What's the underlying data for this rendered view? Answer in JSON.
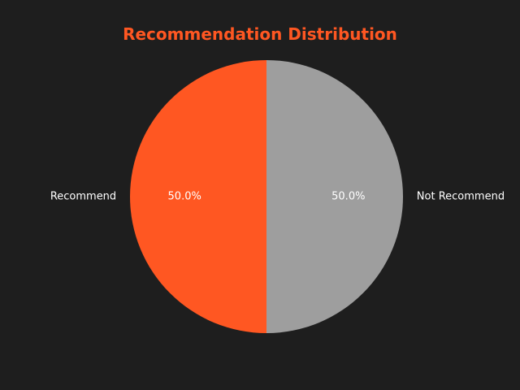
{
  "chart_data": {
    "type": "pie",
    "title": "Recommendation Distribution",
    "categories": [
      "Recommend",
      "Not Recommend"
    ],
    "values": [
      50.0,
      50.0
    ],
    "percent_labels": [
      "50.0%",
      "50.0%"
    ],
    "start_angle_deg": 90,
    "direction": "counterclockwise",
    "colors": [
      "#ff5722",
      "#9e9e9e"
    ]
  },
  "theme": {
    "background": "#1e1e1e",
    "title_color": "#ff5722",
    "label_color": "#ffffff"
  }
}
